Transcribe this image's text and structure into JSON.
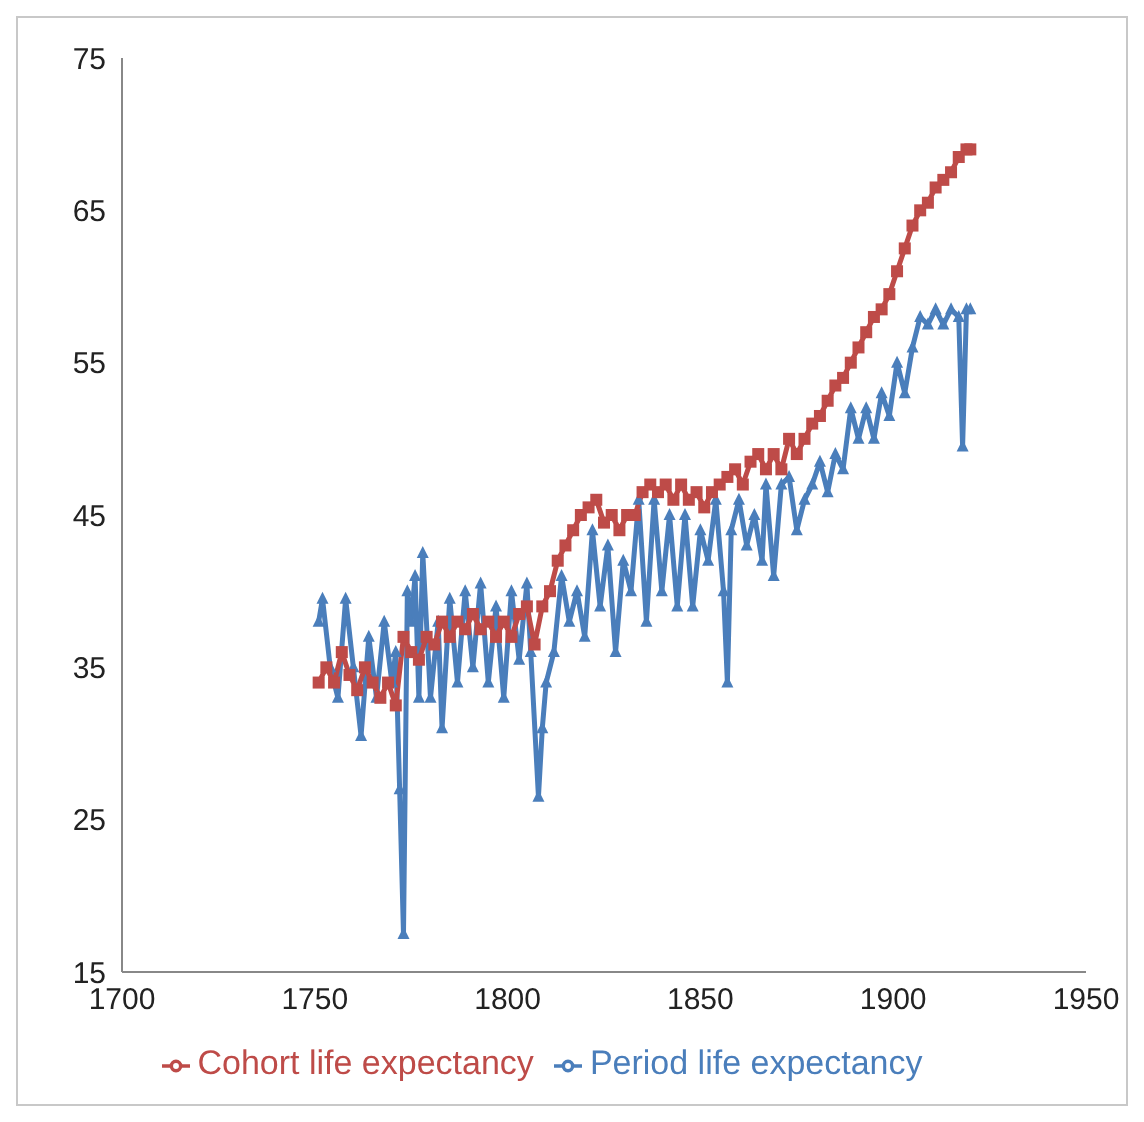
{
  "chart_data": {
    "type": "line",
    "xlim": [
      1700,
      1950
    ],
    "xticks": [
      1700,
      1750,
      1800,
      1850,
      1900,
      1950
    ],
    "ylim": [
      15,
      75
    ],
    "yticks": [
      15,
      25,
      35,
      45,
      55,
      65,
      75
    ],
    "grid": false,
    "legend": "bottom",
    "series": [
      {
        "name": "Period life expectancy",
        "color": "#4a7ebb",
        "marker": "triangle",
        "x": [
          1751,
          1752,
          1754,
          1756,
          1758,
          1760,
          1762,
          1764,
          1766,
          1768,
          1770,
          1771,
          1772,
          1773,
          1774,
          1775,
          1776,
          1777,
          1778,
          1780,
          1782,
          1783,
          1785,
          1787,
          1789,
          1791,
          1793,
          1795,
          1797,
          1799,
          1801,
          1803,
          1805,
          1806,
          1808,
          1809,
          1810,
          1812,
          1814,
          1816,
          1818,
          1820,
          1822,
          1824,
          1826,
          1828,
          1830,
          1832,
          1834,
          1836,
          1838,
          1840,
          1842,
          1844,
          1846,
          1848,
          1850,
          1852,
          1854,
          1856,
          1857,
          1858,
          1860,
          1862,
          1864,
          1866,
          1867,
          1869,
          1871,
          1873,
          1875,
          1877,
          1879,
          1881,
          1883,
          1885,
          1887,
          1889,
          1891,
          1893,
          1895,
          1897,
          1899,
          1901,
          1903,
          1905,
          1907,
          1909,
          1911,
          1913,
          1915,
          1917,
          1918,
          1919,
          1920
        ],
        "values": [
          38,
          39.5,
          35,
          33,
          39.5,
          35,
          30.5,
          37,
          33,
          38,
          34,
          36,
          27,
          17.5,
          40,
          38,
          41,
          33,
          42.5,
          33,
          38,
          31,
          39.5,
          34,
          40,
          35,
          40.5,
          34,
          39,
          33,
          40,
          35.5,
          40.5,
          36,
          26.5,
          31,
          34,
          36,
          41,
          38,
          40,
          37,
          44,
          39,
          43,
          36,
          42,
          40,
          46,
          38,
          46,
          40,
          45,
          39,
          45,
          39,
          44,
          42,
          46,
          40,
          34,
          44,
          46,
          43,
          45,
          42,
          47,
          41,
          47,
          47.5,
          44,
          46,
          47,
          48.5,
          46.5,
          49,
          48,
          52,
          50,
          52,
          50,
          53,
          51.5,
          55,
          53,
          56,
          58,
          57.5,
          58.5,
          57.5,
          58.5,
          58,
          49.5,
          58.5,
          58.5
        ]
      },
      {
        "name": "Cohort life expectancy",
        "color": "#be4b48",
        "marker": "square",
        "x": [
          1751,
          1753,
          1755,
          1757,
          1759,
          1761,
          1763,
          1765,
          1767,
          1769,
          1771,
          1773,
          1775,
          1777,
          1779,
          1781,
          1783,
          1785,
          1787,
          1789,
          1791,
          1793,
          1795,
          1797,
          1799,
          1801,
          1803,
          1805,
          1807,
          1809,
          1811,
          1813,
          1815,
          1817,
          1819,
          1821,
          1823,
          1825,
          1827,
          1829,
          1831,
          1833,
          1835,
          1837,
          1839,
          1841,
          1843,
          1845,
          1847,
          1849,
          1851,
          1853,
          1855,
          1857,
          1859,
          1861,
          1863,
          1865,
          1867,
          1869,
          1871,
          1873,
          1875,
          1877,
          1879,
          1881,
          1883,
          1885,
          1887,
          1889,
          1891,
          1893,
          1895,
          1897,
          1899,
          1901,
          1903,
          1905,
          1907,
          1909,
          1911,
          1913,
          1915,
          1917,
          1919,
          1920
        ],
        "values": [
          34,
          35,
          34,
          36,
          34.5,
          33.5,
          35,
          34,
          33,
          34,
          32.5,
          37,
          36,
          35.5,
          37,
          36.5,
          38,
          37,
          38,
          37.5,
          38.5,
          37.5,
          38,
          37,
          38,
          37,
          38.5,
          39,
          36.5,
          39,
          40,
          42,
          43,
          44,
          45,
          45.5,
          46,
          44.5,
          45,
          44,
          45,
          45,
          46.5,
          47,
          46.5,
          47,
          46,
          47,
          46,
          46.5,
          45.5,
          46.5,
          47,
          47.5,
          48,
          47,
          48.5,
          49,
          48,
          49,
          48,
          50,
          49,
          50,
          51,
          51.5,
          52.5,
          53.5,
          54,
          55,
          56,
          57,
          58,
          58.5,
          59.5,
          61,
          62.5,
          64,
          65,
          65.5,
          66.5,
          67,
          67.5,
          68.5,
          69,
          69
        ]
      }
    ]
  }
}
